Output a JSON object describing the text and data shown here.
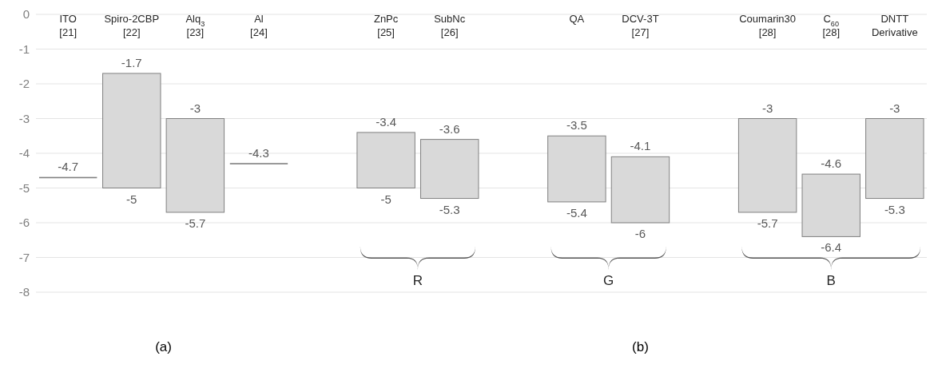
{
  "chart_data": {
    "type": "bar",
    "categories": [
      "ITO\n[21]",
      "Spiro-2CBP\n[22]",
      "Alq$_{3}$\n[23]",
      "Al\n[24]",
      null,
      "ZnPc\n[25]",
      "SubNc\n[26]",
      null,
      "QA",
      "DCV-3T\n[27]",
      null,
      "Coumarin30\n[28]",
      "C$_{60}$\n[28]",
      "DNTT\nDerivative"
    ],
    "base": [
      -4.7,
      -5,
      -5.7,
      -4.3,
      null,
      -5,
      -5.3,
      null,
      -5.4,
      -6,
      null,
      -5.7,
      -6.4,
      -5.3
    ],
    "values": [
      0,
      3.3,
      2.7,
      0,
      null,
      1.6,
      1.7,
      null,
      1.9,
      1.9,
      null,
      2.7,
      1.8,
      2.3
    ],
    "colors": [
      "#808080",
      "#d9d9d9",
      "#d9d9d9",
      "#808080",
      null,
      "#d9d9d9",
      "#d9d9d9",
      null,
      "#d9d9d9",
      "#d9d9d9",
      null,
      "#d9d9d9",
      "#d9d9d9",
      "#d9d9d9"
    ],
    "ylim": [
      -8,
      0
    ],
    "yticks": [
      -8,
      -7,
      -6,
      -5,
      -4,
      -3,
      -2,
      -1,
      0
    ],
    "grid": "y",
    "annotations": [
      {
        "text": "-4.7",
        "x": "ITO\n[21]",
        "y": -4.7
      },
      {
        "text": "-1.7",
        "x": "Spiro-2CBP\n[22]",
        "y": -1.7
      },
      {
        "text": "-5",
        "x": "Spiro-2CBP\n[22]",
        "y": -5
      },
      {
        "text": "-3",
        "x": "Alq$_{3}$\n[23]",
        "y": -3
      },
      {
        "text": "-5.7",
        "x": "Alq$_{3}$\n[23]",
        "y": -5.7
      },
      {
        "text": "-4.3",
        "x": "Al\n[24]",
        "y": -4.3
      },
      {
        "text": "-3.4",
        "x": "ZnPc\n[25]",
        "y": -3.4
      },
      {
        "text": "-5",
        "x": "ZnPc\n[25]",
        "y": -5
      },
      {
        "text": "-3.6",
        "x": "SubNc\n[26]",
        "y": -3.6
      },
      {
        "text": "-5.3",
        "x": "SubNc\n[26]",
        "y": -5.3
      },
      {
        "text": "-3.5",
        "x": "QA",
        "y": -3.5
      },
      {
        "text": "-5.4",
        "x": "QA",
        "y": -5.4
      },
      {
        "text": "-4.1",
        "x": "DCV-3T\n[27]",
        "y": -4.1
      },
      {
        "text": "-6",
        "x": "DCV-3T\n[27]",
        "y": -6
      },
      {
        "text": "-3",
        "x": "Coumarin30\n[28]",
        "y": -3
      },
      {
        "text": "-5.7",
        "x": "Coumarin30\n[28]",
        "y": -5.7
      },
      {
        "text": "-4.6",
        "x": "C$_{60}$\n[28]",
        "y": -4.6
      },
      {
        "text": "-6.4",
        "x": "C$_{60}$\n[28]",
        "y": -6.4
      },
      {
        "text": "-3",
        "x": "DNTT\nDerivative",
        "y": -3
      },
      {
        "text": "-5.3",
        "x": "DNTT\nDerivative",
        "y": -5.3
      },
      "(a)",
      "(b)",
      "R",
      "G",
      "B"
    ]
  }
}
